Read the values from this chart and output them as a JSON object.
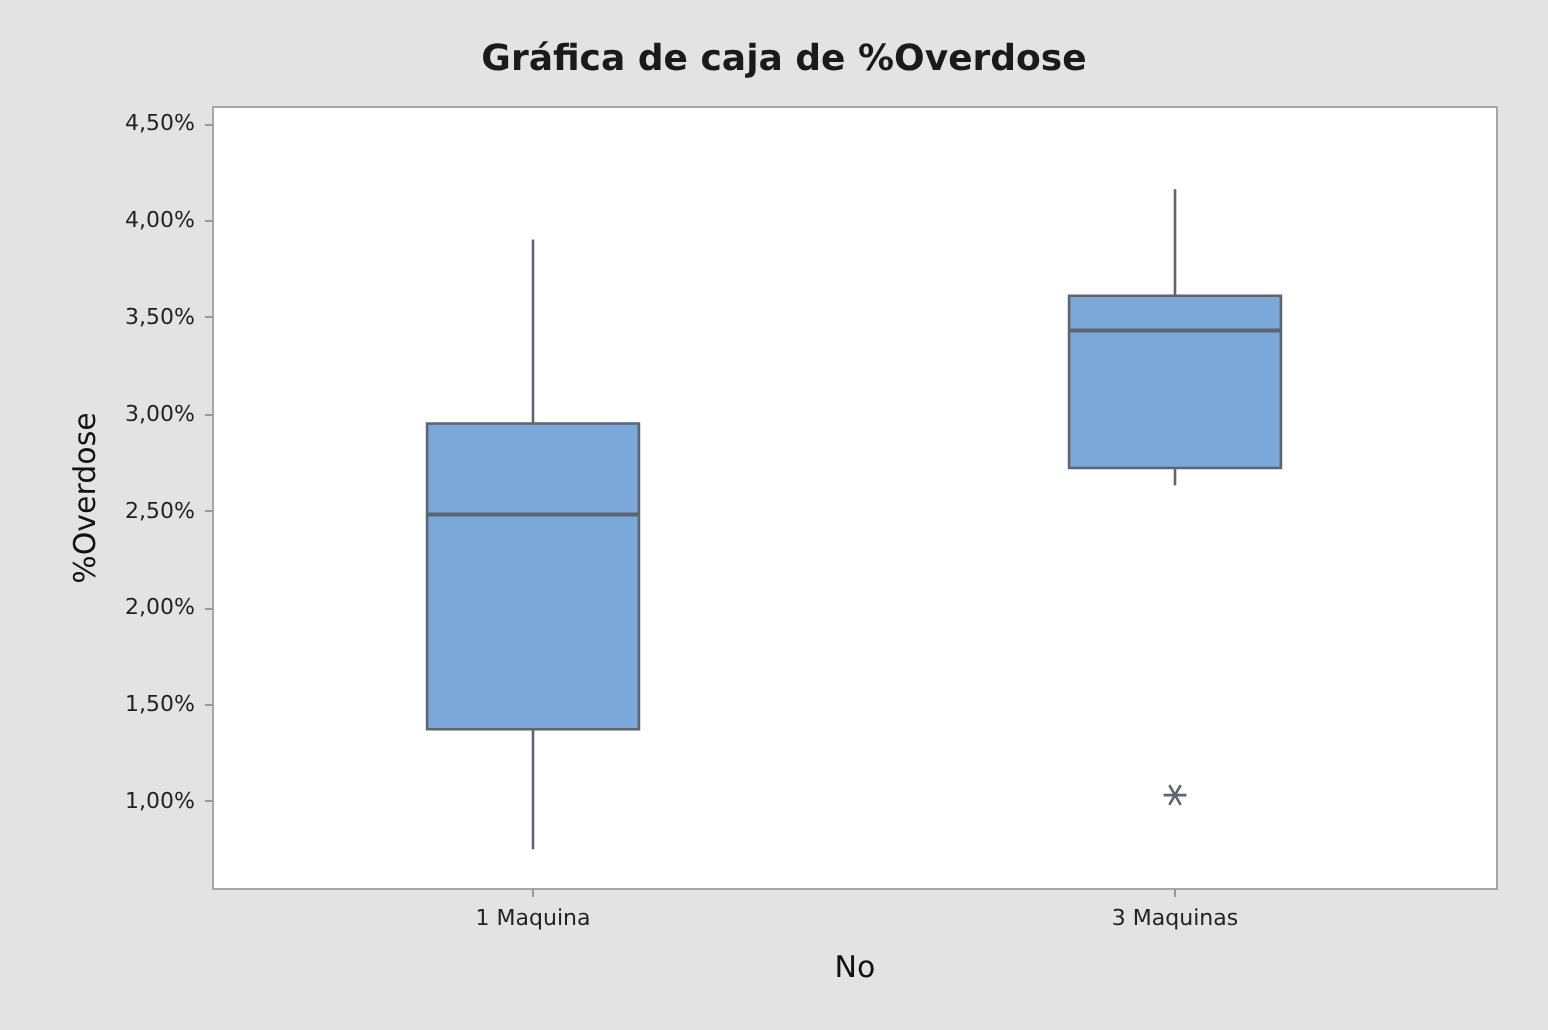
{
  "chart_data": {
    "type": "box",
    "title": "Gráfica de caja de %Overdose",
    "xlabel": "No",
    "ylabel": "%Overdose",
    "categories": [
      "1 Maquina",
      "3 Maquinas"
    ],
    "boxes": [
      {
        "low": 0.75,
        "q1": 1.37,
        "median": 2.48,
        "q3": 2.95,
        "high": 3.9
      },
      {
        "low": 2.63,
        "q1": 2.72,
        "median": 3.43,
        "q3": 3.61,
        "high": 4.16,
        "outliers": [
          1.03
        ]
      }
    ],
    "color": "#7ba7d9",
    "ylim": [
      0.55,
      4.59
    ],
    "yticks": [
      {
        "value": 1,
        "label": "1,00%"
      },
      {
        "value": 1.5,
        "label": "1,50%"
      },
      {
        "value": 2,
        "label": "2,00%"
      },
      {
        "value": 2.5,
        "label": "2,50%"
      },
      {
        "value": 3,
        "label": "3,00%"
      },
      {
        "value": 3.5,
        "label": "3,50%"
      },
      {
        "value": 4,
        "label": "4,00%"
      },
      {
        "value": 4.5,
        "label": "4,50%"
      }
    ]
  }
}
